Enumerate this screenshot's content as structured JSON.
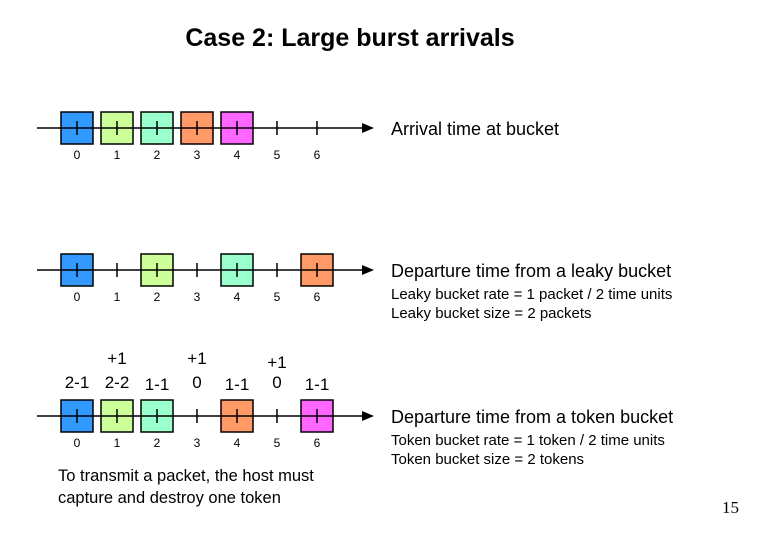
{
  "title": "Case 2: Large burst arrivals",
  "timelines": [
    {
      "label": "Arrival time at bucket",
      "details": [],
      "ticks": [
        "0",
        "1",
        "2",
        "3",
        "4",
        "5",
        "6"
      ],
      "packets": [
        {
          "slot": 0,
          "color": "#3399ff"
        },
        {
          "slot": 1,
          "color": "#ccff99"
        },
        {
          "slot": 2,
          "color": "#99ffcc"
        },
        {
          "slot": 3,
          "color": "#ff9966"
        },
        {
          "slot": 4,
          "color": "#ff66ff"
        }
      ]
    },
    {
      "label": "Departure time from a leaky bucket",
      "details": [
        "Leaky bucket rate = 1 packet / 2 time units",
        "Leaky bucket size = 2 packets"
      ],
      "ticks": [
        "0",
        "1",
        "2",
        "3",
        "4",
        "5",
        "6"
      ],
      "packets": [
        {
          "slot": 0,
          "color": "#3399ff"
        },
        {
          "slot": 2,
          "color": "#ccff99"
        },
        {
          "slot": 4,
          "color": "#99ffcc"
        },
        {
          "slot": 6,
          "color": "#ff9966"
        }
      ]
    },
    {
      "label": "Departure time from a token bucket",
      "details": [
        "Token bucket rate = 1 token / 2 time units",
        "Token bucket size = 2 tokens"
      ],
      "ticks": [
        "0",
        "1",
        "2",
        "3",
        "4",
        "5",
        "6"
      ],
      "packets": [
        {
          "slot": 0,
          "color": "#3399ff"
        },
        {
          "slot": 1,
          "color": "#ccff99"
        },
        {
          "slot": 2,
          "color": "#99ffcc"
        },
        {
          "slot": 4,
          "color": "#ff9966"
        },
        {
          "slot": 6,
          "color": "#ff66ff"
        }
      ]
    }
  ],
  "token_annotations": [
    {
      "slot": 0,
      "plus": "",
      "count": "2-1"
    },
    {
      "slot": 1,
      "plus": "+1",
      "count": "2-2"
    },
    {
      "slot": 2,
      "plus": "",
      "count": "1-1"
    },
    {
      "slot": 3,
      "plus": "+1",
      "count": "0"
    },
    {
      "slot": 4,
      "plus": "",
      "count": "1-1"
    },
    {
      "slot": 5,
      "plus": "+1",
      "count": "0"
    },
    {
      "slot": 6,
      "plus": "",
      "count": "1-1"
    }
  ],
  "note": [
    "To transmit a packet, the host must",
    "capture and destroy one token"
  ],
  "page_number": "15"
}
